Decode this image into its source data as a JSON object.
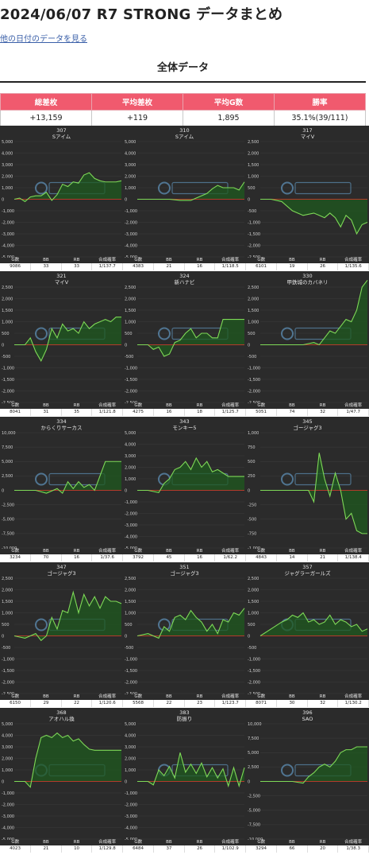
{
  "header": {
    "title": "2024/06/07 R7 STRONG データまとめ",
    "other_dates_link": "他の日付のデータを見る",
    "section_title": "全体データ"
  },
  "summary": {
    "headers": [
      "総差枚",
      "平均差枚",
      "平均G数",
      "勝率"
    ],
    "values": [
      "+13,159",
      "+119",
      "1,895",
      "35.1%(39/111)"
    ]
  },
  "stats_headers": [
    "G数",
    "BB",
    "RB",
    "合成確率"
  ],
  "colors": {
    "line": "#7ed957",
    "fill": "#1f5a1f",
    "zero_line": "#b33a2b",
    "panel_bg": "#2b2b2b",
    "header_pink": "#f05a6e"
  },
  "watermark_icon": "anaslo-logo-icon",
  "chart_data": [
    {
      "type": "line",
      "machine_no": "307",
      "machine_name": "Sアイム",
      "ylim": [
        -5000,
        5000
      ],
      "yticks": [
        "5,000",
        "4,000",
        "3,000",
        "2,000",
        "1,000",
        "0",
        "-1,000",
        "-2,000",
        "-3,000",
        "-4,000",
        "-5,000"
      ],
      "x": [
        0,
        5,
        10,
        15,
        20,
        25,
        30,
        35,
        40,
        45,
        50,
        55,
        60,
        65,
        70,
        75,
        80,
        85,
        90,
        95,
        100
      ],
      "values": [
        0,
        100,
        -200,
        200,
        300,
        300,
        600,
        -100,
        400,
        1300,
        1100,
        1500,
        1400,
        2100,
        2300,
        1800,
        1600,
        1500,
        1500,
        1500,
        1600
      ],
      "stats": [
        "9086",
        "33",
        "33",
        "1/137.7"
      ]
    },
    {
      "type": "line",
      "machine_no": "310",
      "machine_name": "Sアイム",
      "ylim": [
        -5000,
        5000
      ],
      "yticks": [
        "5,000",
        "4,000",
        "3,000",
        "2,000",
        "1,000",
        "0",
        "-1,000",
        "-2,000",
        "-3,000",
        "-4,000",
        "-5,000"
      ],
      "x": [
        0,
        10,
        20,
        30,
        40,
        50,
        55,
        60,
        65,
        70,
        75,
        80,
        85,
        90,
        95,
        100
      ],
      "values": [
        0,
        0,
        0,
        0,
        -100,
        -100,
        100,
        300,
        500,
        900,
        1200,
        1000,
        1000,
        1000,
        800,
        1500
      ],
      "stats": [
        "4383",
        "21",
        "16",
        "1/118.5"
      ]
    },
    {
      "type": "line",
      "machine_no": "317",
      "machine_name": "マイV",
      "ylim": [
        -2500,
        2500
      ],
      "yticks": [
        "2,500",
        "2,000",
        "1,500",
        "1,000",
        "500",
        "0",
        "-500",
        "-1,000",
        "-1,500",
        "-2,000",
        "-2,500"
      ],
      "x": [
        0,
        10,
        20,
        30,
        40,
        50,
        55,
        60,
        65,
        70,
        75,
        80,
        85,
        90,
        95,
        100
      ],
      "values": [
        0,
        0,
        -100,
        -500,
        -700,
        -600,
        -700,
        -800,
        -600,
        -800,
        -1200,
        -700,
        -900,
        -1500,
        -1100,
        -1000
      ],
      "stats": [
        "6101",
        "19",
        "26",
        "1/135.6"
      ]
    },
    {
      "type": "line",
      "machine_no": "321",
      "machine_name": "マイV",
      "ylim": [
        -2500,
        2500
      ],
      "yticks": [
        "2,500",
        "2,000",
        "1,500",
        "1,000",
        "500",
        "0",
        "-500",
        "-1,000",
        "-1,500",
        "-2,000",
        "-2,500"
      ],
      "x": [
        0,
        10,
        15,
        20,
        25,
        30,
        35,
        40,
        45,
        50,
        55,
        60,
        65,
        70,
        75,
        80,
        85,
        90,
        95,
        100
      ],
      "values": [
        0,
        0,
        300,
        -300,
        -700,
        -200,
        700,
        300,
        900,
        600,
        700,
        500,
        1000,
        700,
        900,
        1000,
        1100,
        1000,
        1200,
        1200
      ],
      "stats": [
        "8041",
        "31",
        "35",
        "1/121.8"
      ]
    },
    {
      "type": "line",
      "machine_no": "324",
      "machine_name": "新ハナビ",
      "ylim": [
        -2500,
        2500
      ],
      "yticks": [
        "2,500",
        "2,000",
        "1,500",
        "1,000",
        "500",
        "0",
        "-500",
        "-1,000",
        "-1,500",
        "-2,000",
        "-2,500"
      ],
      "x": [
        0,
        10,
        15,
        20,
        25,
        30,
        35,
        40,
        45,
        50,
        55,
        60,
        65,
        70,
        75,
        80,
        85,
        90,
        95,
        100
      ],
      "values": [
        0,
        0,
        -200,
        -100,
        -500,
        -400,
        100,
        200,
        500,
        700,
        300,
        500,
        500,
        300,
        300,
        1100,
        1100,
        1100,
        1100,
        1100
      ],
      "stats": [
        "4275",
        "16",
        "18",
        "1/125.7"
      ]
    },
    {
      "type": "line",
      "machine_no": "330",
      "machine_name": "甲鉄城のカバネリ",
      "ylim": [
        -2500,
        2500
      ],
      "yticks": [
        "2,500",
        "2,000",
        "1,500",
        "1,000",
        "500",
        "0",
        "-500",
        "-1,000",
        "-1,500",
        "-2,000",
        "-2,500"
      ],
      "x": [
        0,
        10,
        20,
        30,
        40,
        50,
        55,
        60,
        65,
        70,
        75,
        80,
        85,
        90,
        95,
        100
      ],
      "values": [
        0,
        0,
        0,
        0,
        0,
        100,
        0,
        300,
        600,
        500,
        800,
        1100,
        1000,
        1500,
        2500,
        2800
      ],
      "stats": [
        "5051",
        "74",
        "32",
        "1/47.7"
      ]
    },
    {
      "type": "line",
      "machine_no": "334",
      "machine_name": "からくりサーカス",
      "ylim": [
        -10000,
        10000
      ],
      "yticks": [
        "10,000",
        "7,500",
        "5,000",
        "2,500",
        "0",
        "-2,500",
        "-5,000",
        "-7,500",
        "-10,000"
      ],
      "x": [
        0,
        10,
        20,
        30,
        40,
        45,
        50,
        55,
        60,
        65,
        70,
        75,
        80,
        85,
        90,
        95,
        100
      ],
      "values": [
        0,
        0,
        0,
        -500,
        300,
        -500,
        1500,
        300,
        1500,
        500,
        1000,
        0,
        2500,
        5000,
        5000,
        5000,
        5000
      ],
      "stats": [
        "3234",
        "70",
        "16",
        "1/37.6"
      ]
    },
    {
      "type": "line",
      "machine_no": "343",
      "machine_name": "モンキー5",
      "ylim": [
        -5000,
        5000
      ],
      "yticks": [
        "5,000",
        "4,000",
        "3,000",
        "2,000",
        "1,000",
        "0",
        "-1,000",
        "-2,000",
        "-3,000",
        "-4,000",
        "-5,000"
      ],
      "x": [
        0,
        10,
        20,
        25,
        30,
        35,
        40,
        45,
        50,
        55,
        60,
        65,
        70,
        75,
        80,
        85,
        90,
        95,
        100
      ],
      "values": [
        0,
        0,
        -200,
        600,
        1000,
        1800,
        2000,
        2500,
        1800,
        2800,
        2000,
        2500,
        1600,
        1800,
        1500,
        1200,
        1200,
        1200,
        1200
      ],
      "stats": [
        "3792",
        "45",
        "16",
        "1/62.2"
      ]
    },
    {
      "type": "line",
      "machine_no": "345",
      "machine_name": "ゴージャグ3",
      "ylim": [
        -1000,
        1000
      ],
      "yticks": [
        "1,000",
        "750",
        "500",
        "250",
        "0",
        "-250",
        "-500",
        "-750",
        "-1,000"
      ],
      "x": [
        0,
        10,
        20,
        30,
        40,
        45,
        50,
        55,
        60,
        65,
        70,
        75,
        80,
        85,
        90,
        95,
        100
      ],
      "values": [
        0,
        0,
        0,
        0,
        0,
        0,
        -200,
        650,
        200,
        -100,
        300,
        0,
        -500,
        -400,
        -700,
        -750,
        -750
      ],
      "stats": [
        "4843",
        "14",
        "21",
        "1/138.4"
      ]
    },
    {
      "type": "line",
      "machine_no": "347",
      "machine_name": "ゴージャグ3",
      "ylim": [
        -2500,
        2500
      ],
      "yticks": [
        "2,500",
        "2,000",
        "1,500",
        "1,000",
        "500",
        "0",
        "-500",
        "-1,000",
        "-1,500",
        "-2,000",
        "-2,500"
      ],
      "x": [
        0,
        10,
        20,
        25,
        30,
        35,
        40,
        45,
        50,
        55,
        60,
        65,
        70,
        75,
        80,
        85,
        90,
        95,
        100
      ],
      "values": [
        0,
        -100,
        100,
        -200,
        0,
        800,
        300,
        1100,
        1000,
        1900,
        1000,
        1800,
        1300,
        1700,
        1200,
        1700,
        1500,
        1500,
        1400
      ],
      "stats": [
        "6150",
        "29",
        "22",
        "1/120.6"
      ]
    },
    {
      "type": "line",
      "machine_no": "351",
      "machine_name": "ゴージャグ3",
      "ylim": [
        -2500,
        2500
      ],
      "yticks": [
        "2,500",
        "2,000",
        "1,500",
        "1,000",
        "500",
        "0",
        "-500",
        "-1,000",
        "-1,500",
        "-2,000",
        "-2,500"
      ],
      "x": [
        0,
        10,
        20,
        25,
        30,
        35,
        40,
        45,
        50,
        55,
        60,
        65,
        70,
        75,
        80,
        85,
        90,
        95,
        100
      ],
      "values": [
        0,
        100,
        -100,
        400,
        200,
        800,
        900,
        700,
        1100,
        800,
        600,
        200,
        500,
        100,
        700,
        600,
        1000,
        900,
        1200
      ],
      "stats": [
        "5568",
        "22",
        "23",
        "1/123.7"
      ]
    },
    {
      "type": "line",
      "machine_no": "357",
      "machine_name": "ジャグラーガールズ",
      "ylim": [
        -2500,
        2500
      ],
      "yticks": [
        "2,500",
        "2,000",
        "1,500",
        "1,000",
        "500",
        "0",
        "-500",
        "-1,000",
        "-1,500",
        "-2,000",
        "-2,500"
      ],
      "x": [
        0,
        10,
        20,
        25,
        30,
        35,
        40,
        45,
        50,
        55,
        60,
        65,
        70,
        75,
        80,
        85,
        90,
        95,
        100
      ],
      "values": [
        0,
        300,
        600,
        700,
        900,
        800,
        1000,
        600,
        700,
        500,
        600,
        900,
        500,
        700,
        600,
        400,
        500,
        200,
        300
      ],
      "stats": [
        "8071",
        "30",
        "32",
        "1/130.2"
      ]
    },
    {
      "type": "line",
      "machine_no": "368",
      "machine_name": "アオハル換",
      "ylim": [
        -5000,
        5000
      ],
      "yticks": [
        "5,000",
        "4,000",
        "3,000",
        "2,000",
        "1,000",
        "0",
        "-1,000",
        "-2,000",
        "-3,000",
        "-4,000",
        "-5,000"
      ],
      "x": [
        0,
        10,
        15,
        20,
        25,
        30,
        35,
        40,
        45,
        50,
        55,
        60,
        65,
        70,
        75,
        80,
        85,
        90,
        95,
        100
      ],
      "values": [
        0,
        0,
        -500,
        2000,
        3800,
        4000,
        3800,
        4200,
        3800,
        4000,
        3500,
        3700,
        3200,
        2800,
        2700,
        2700,
        2700,
        2700,
        2700,
        2700
      ],
      "stats": [
        "4023",
        "21",
        "10",
        "1/129.8"
      ]
    },
    {
      "type": "line",
      "machine_no": "383",
      "machine_name": "防振り",
      "ylim": [
        -5000,
        5000
      ],
      "yticks": [
        "5,000",
        "4,000",
        "3,000",
        "2,000",
        "1,000",
        "0",
        "-1,000",
        "-2,000",
        "-3,000",
        "-4,000",
        "-5,000"
      ],
      "x": [
        0,
        10,
        15,
        20,
        25,
        30,
        35,
        40,
        45,
        50,
        55,
        60,
        65,
        70,
        75,
        80,
        85,
        90,
        95,
        100
      ],
      "values": [
        0,
        0,
        -300,
        1000,
        500,
        1300,
        300,
        2500,
        800,
        1500,
        700,
        1600,
        400,
        1200,
        300,
        1100,
        -400,
        1200,
        -400,
        1200
      ],
      "stats": [
        "6484",
        "37",
        "26",
        "1/102.9"
      ]
    },
    {
      "type": "line",
      "machine_no": "396",
      "machine_name": "SAO",
      "ylim": [
        -10000,
        10000
      ],
      "yticks": [
        "10,000",
        "7,500",
        "5,000",
        "2,500",
        "0",
        "-2,500",
        "-5,000",
        "-7,500",
        "-10,000"
      ],
      "x": [
        0,
        10,
        20,
        30,
        40,
        45,
        50,
        55,
        60,
        65,
        70,
        75,
        80,
        85,
        90,
        95,
        100
      ],
      "values": [
        0,
        0,
        0,
        0,
        -300,
        800,
        1500,
        2500,
        3000,
        2500,
        3500,
        5000,
        5500,
        5500,
        6000,
        6000,
        6000
      ],
      "stats": [
        "3294",
        "66",
        "20",
        "1/38.3"
      ]
    }
  ]
}
